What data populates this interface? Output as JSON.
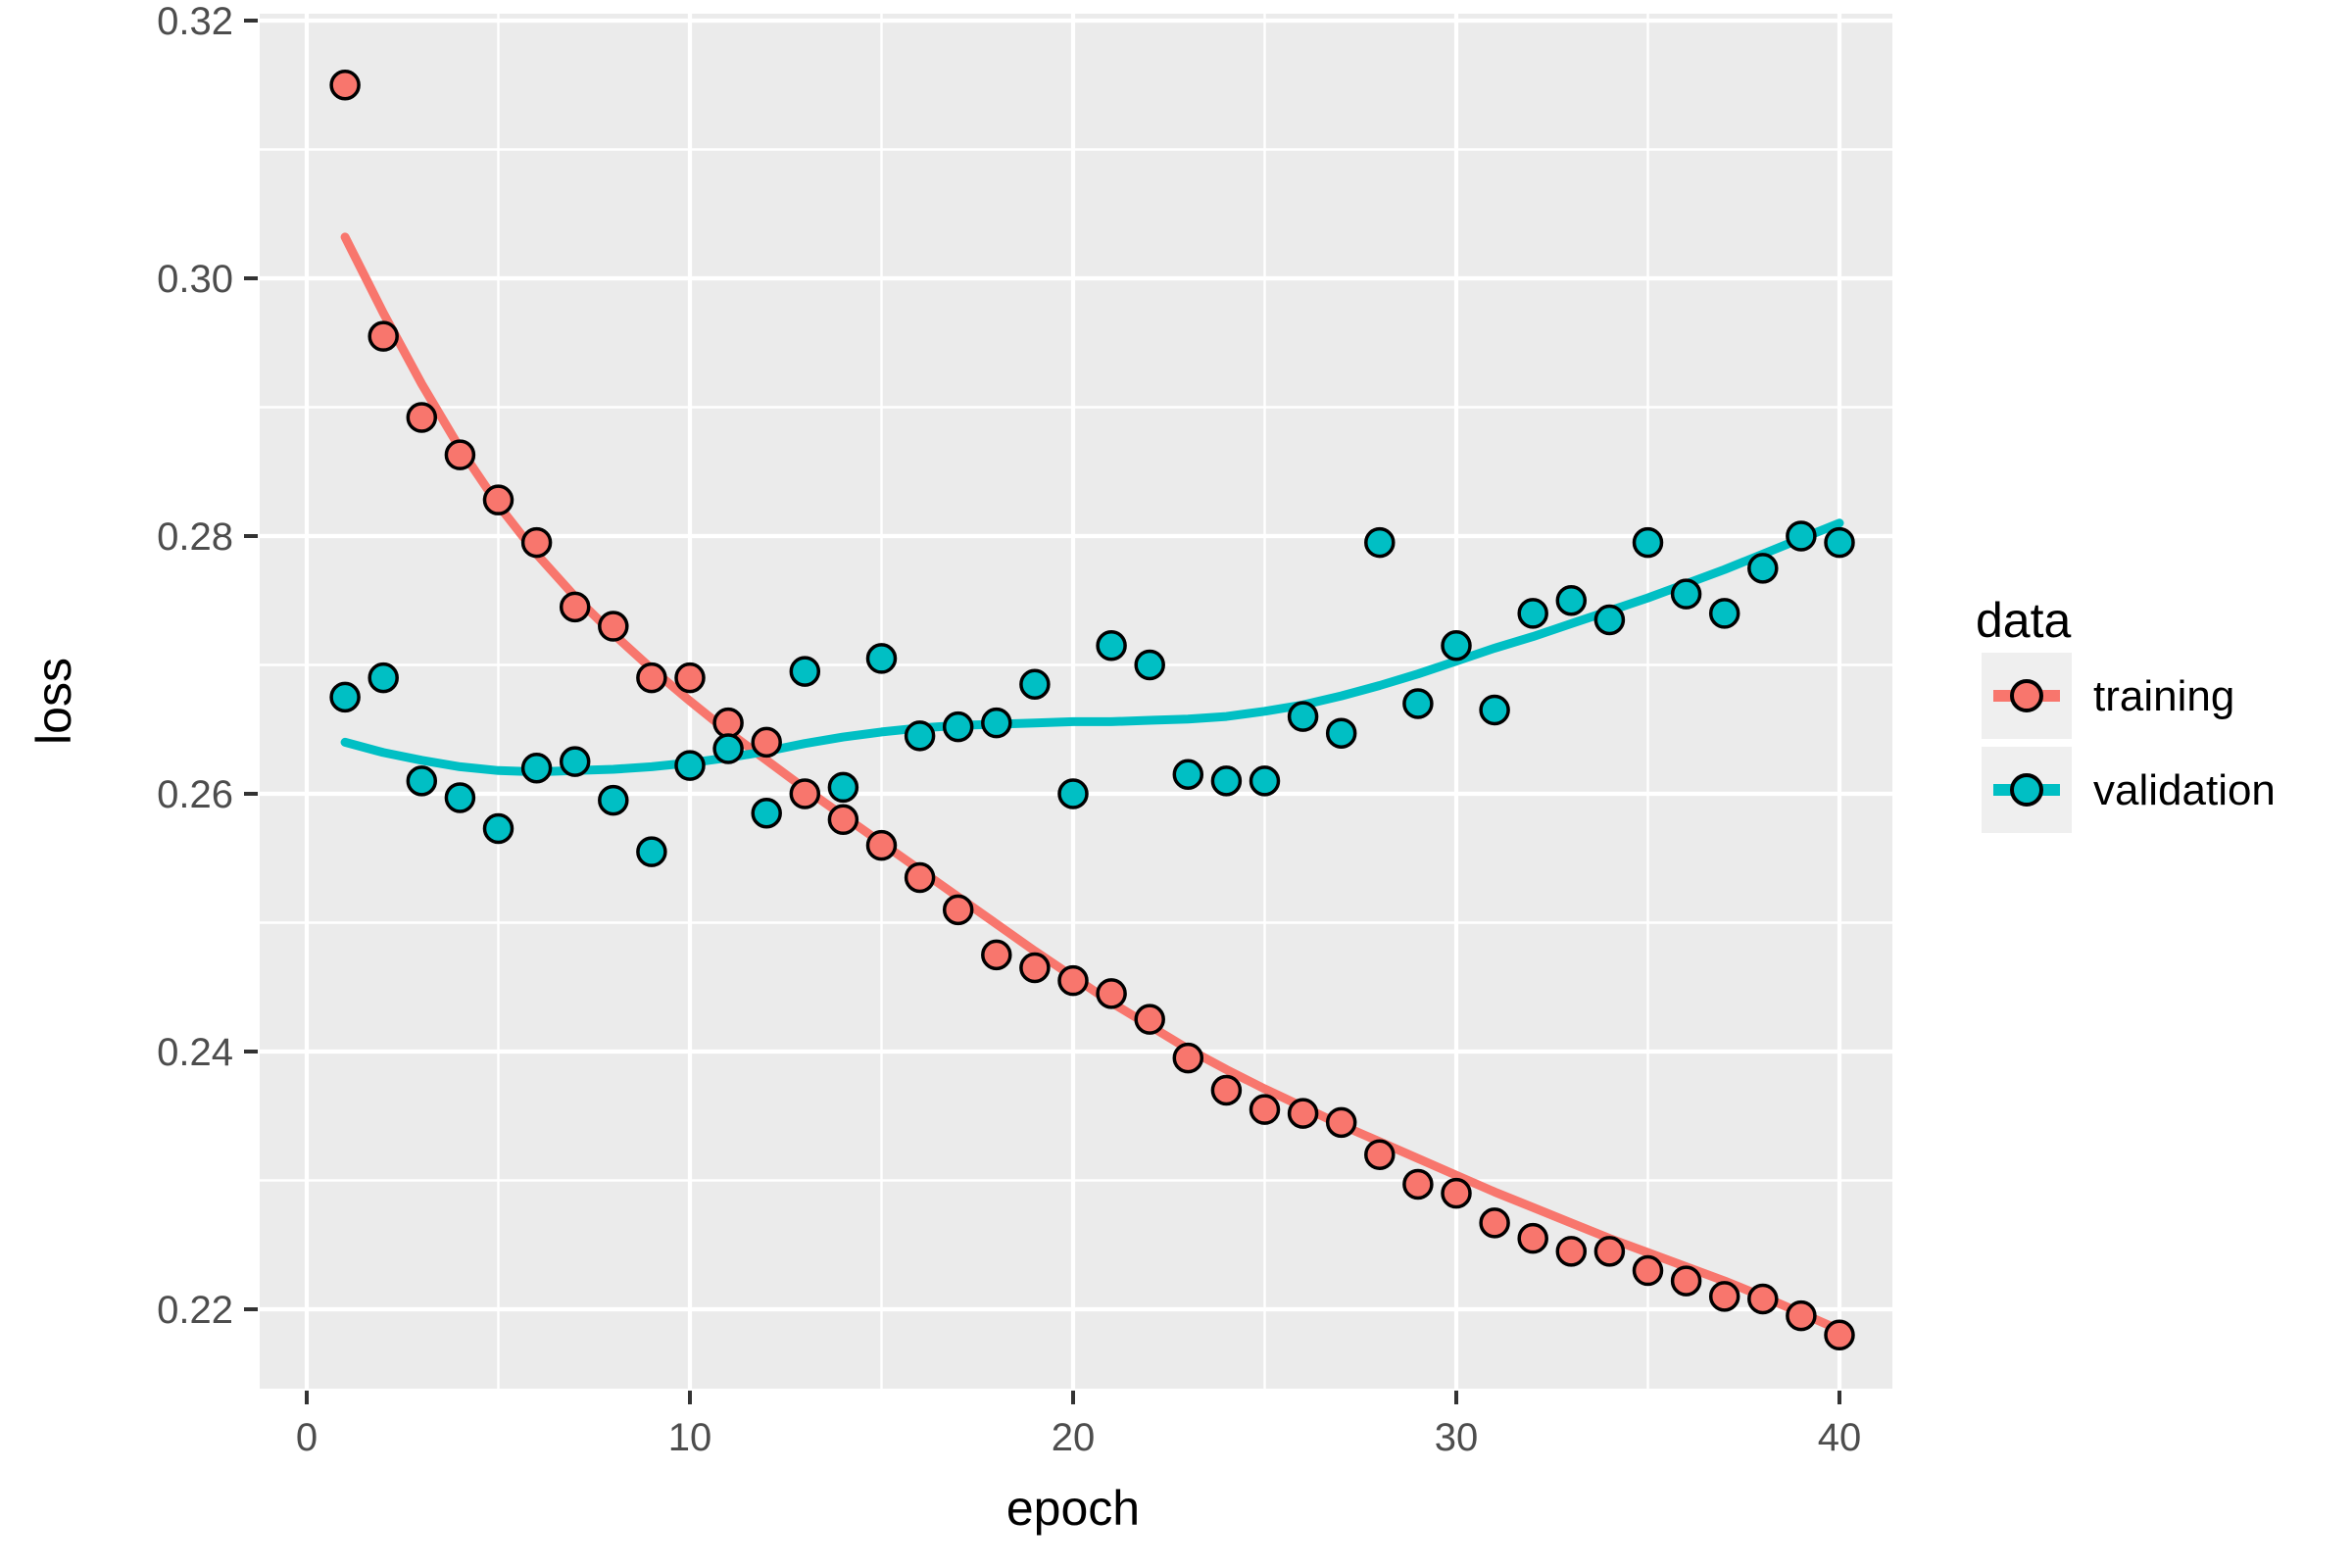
{
  "chart_data": {
    "type": "scatter",
    "title": "",
    "xlabel": "epoch",
    "ylabel": "loss",
    "x_axis": {
      "tick_values": [
        0,
        10,
        20,
        30,
        40
      ],
      "tick_labels": [
        "0",
        "10",
        "20",
        "30",
        "40"
      ],
      "minor_grid_values": [
        5,
        15,
        25,
        35
      ],
      "range": [
        -1.2,
        41.4
      ]
    },
    "y_axis": {
      "tick_values": [
        0.32,
        0.3,
        0.28,
        0.26,
        0.24,
        0.22
      ],
      "tick_labels": [
        "0.32",
        "0.30",
        "0.28",
        "0.26",
        "0.24",
        "0.22"
      ],
      "minor_grid_values": [
        0.31,
        0.29,
        0.27,
        0.25,
        0.23
      ],
      "range": [
        0.2135,
        0.3205
      ]
    },
    "grid": "on",
    "legend_position": "right",
    "epochs": [
      1,
      2,
      3,
      4,
      5,
      6,
      7,
      8,
      9,
      10,
      11,
      12,
      13,
      14,
      15,
      16,
      17,
      18,
      19,
      20,
      21,
      22,
      23,
      24,
      25,
      26,
      27,
      28,
      29,
      30,
      31,
      32,
      33,
      34,
      35,
      36,
      37,
      38,
      39,
      40
    ],
    "series": [
      {
        "name": "training",
        "color": "#F8766D",
        "points": [
          0.315,
          0.2955,
          0.2892,
          0.2863,
          0.2828,
          0.2795,
          0.2745,
          0.273,
          0.269,
          0.269,
          0.2655,
          0.264,
          0.26,
          0.258,
          0.256,
          0.2535,
          0.251,
          0.2475,
          0.2465,
          0.2455,
          0.2445,
          0.2425,
          0.2395,
          0.237,
          0.2355,
          0.2352,
          0.2345,
          0.232,
          0.2297,
          0.229,
          0.2267,
          0.2255,
          0.2245,
          0.2245,
          0.223,
          0.2222,
          0.221,
          0.2208,
          0.2195,
          0.218
        ],
        "smooth": [
          0.3032,
          0.2973,
          0.2918,
          0.2868,
          0.2824,
          0.2786,
          0.2753,
          0.2724,
          0.2697,
          0.2672,
          0.2648,
          0.2626,
          0.2604,
          0.2583,
          0.2562,
          0.2541,
          0.252,
          0.2499,
          0.2478,
          0.2458,
          0.2438,
          0.242,
          0.2402,
          0.2386,
          0.2371,
          0.2357,
          0.2343,
          0.233,
          0.2317,
          0.2304,
          0.2291,
          0.2279,
          0.2267,
          0.2255,
          0.2244,
          0.2233,
          0.2222,
          0.221,
          0.2197,
          0.2184
        ]
      },
      {
        "name": "validation",
        "color": "#00BFC4",
        "points": [
          0.2675,
          0.269,
          0.261,
          0.2597,
          0.2573,
          0.262,
          0.2625,
          0.2595,
          0.2555,
          0.2622,
          0.2635,
          0.2585,
          0.2695,
          0.2605,
          0.2705,
          0.2645,
          0.2652,
          0.2655,
          0.2685,
          0.26,
          0.2715,
          0.27,
          0.2615,
          0.261,
          0.261,
          0.266,
          0.2647,
          0.2795,
          0.267,
          0.2715,
          0.2665,
          0.274,
          0.275,
          0.2735,
          0.2795,
          0.2755,
          0.274,
          0.2775,
          0.28,
          0.2795
        ],
        "smooth": [
          0.264,
          0.2632,
          0.2626,
          0.2621,
          0.2618,
          0.2617,
          0.2618,
          0.2619,
          0.2621,
          0.2624,
          0.2628,
          0.2633,
          0.2639,
          0.2644,
          0.2648,
          0.2651,
          0.2653,
          0.2654,
          0.2655,
          0.2656,
          0.2656,
          0.2657,
          0.2658,
          0.266,
          0.2664,
          0.2669,
          0.2676,
          0.2684,
          0.2693,
          0.2703,
          0.2713,
          0.2722,
          0.2732,
          0.2742,
          0.2752,
          0.2763,
          0.2774,
          0.2786,
          0.2798,
          0.281
        ]
      }
    ],
    "legend": {
      "title": "data",
      "items": [
        {
          "label": "training",
          "color": "#F8766D"
        },
        {
          "label": "validation",
          "color": "#00BFC4"
        }
      ]
    },
    "colors": {
      "panel_background": "#EBEBEB",
      "grid_line": "#FFFFFF",
      "tick_text": "#4D4D4D",
      "axis_title_text": "#000000",
      "tick_mark": "#333333",
      "point_outline": "#000000",
      "legend_key_background": "#EFEFEF",
      "page_background": "#FFFFFF"
    }
  }
}
